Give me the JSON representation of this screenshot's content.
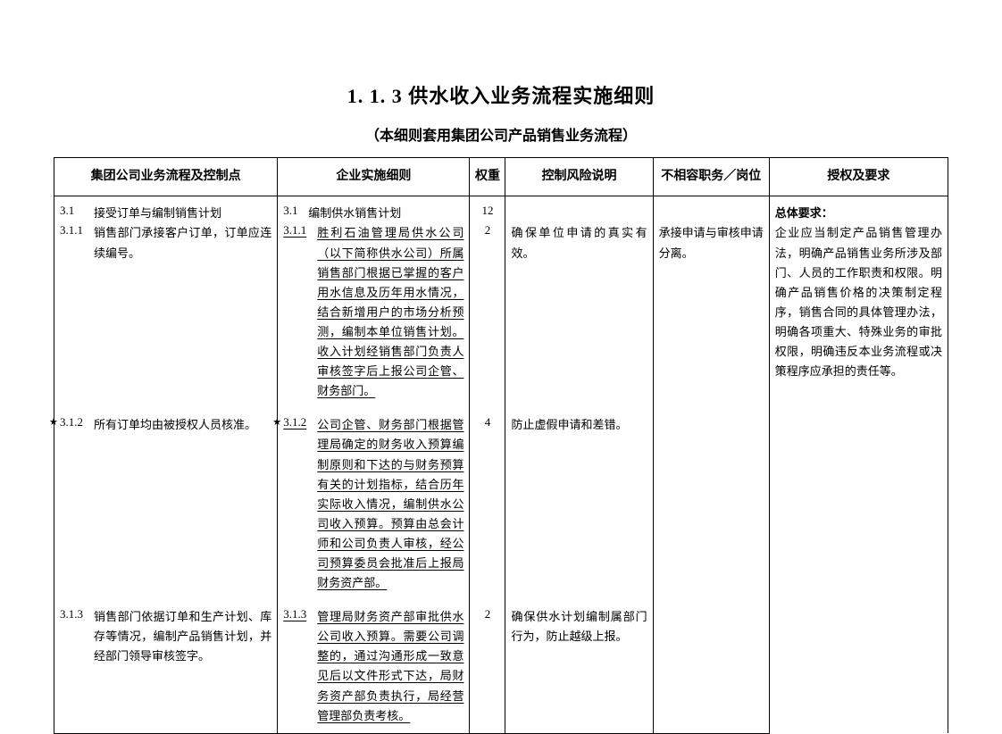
{
  "title": "1. 1. 3 供水收入业务流程实施细则",
  "subtitle": "（本细则套用集团公司产品销售业务流程）",
  "headers": {
    "process": "集团公司业务流程及控制点",
    "impl": "企业实施细则",
    "weight": "权重",
    "risk": "控制风险说明",
    "post": "不相容职务／岗位",
    "auth": "授权及要求"
  },
  "section": {
    "process_num": "3.1",
    "process_txt": "接受订单与编制销售计划",
    "impl_num": "3.1",
    "impl_txt": "编制供水销售计划",
    "weight": "12"
  },
  "rows": [
    {
      "p_num": "3.1.1",
      "p_star": false,
      "p_txt": "销售部门承接客户订单，订单应连续编号。",
      "i_num": "3.1.1",
      "i_star": false,
      "i_txt": "胜利石油管理局供水公司（以下简称供水公司）所属销售部门根据已掌握的客户用水信息及历年用水情况，结合新增用户的市场分析预测，编制本单位销售计划。收入计划经销售部门负责人审核签字后上报公司企管、财务部门。",
      "weight": "2",
      "risk": "确保单位申请的真实有效。",
      "post": "承接申请与审核申请分离。"
    },
    {
      "p_num": "3.1.2",
      "p_star": true,
      "p_txt": "所有订单均由被授权人员核准。",
      "i_num": "3.1.2",
      "i_star": true,
      "i_txt": "公司企管、财务部门根据管理局确定的财务收入预算编制原则和下达的与财务预算有关的计划指标，结合历年实际收入情况，编制供水公司收入预算。预算由总会计师和公司负责人审核，经公司预算委员会批准后上报局财务资产部。",
      "weight": "4",
      "risk": "防止虚假申请和差错。",
      "post": ""
    },
    {
      "p_num": "3.1.3",
      "p_star": false,
      "p_txt": "销售部门依据订单和生产计划、库存等情况，编制产品销售计划，并经部门领导审核签字。",
      "i_num": "3.1.3",
      "i_star": false,
      "i_txt": "管理局财务资产部审批供水公司收入预算。需要公司调整的，通过沟通形成一致意见后以文件形式下达，局财务资产部负责执行，局经营管理部负责考核。",
      "weight": "2",
      "risk": "确保供水计划编制属部门行为，防止越级上报。",
      "post": ""
    }
  ],
  "auth": {
    "head": "总体要求：",
    "body": "企业应当制定产品销售管理办法，明确产品销售业务所涉及部门、人员的工作职责和权限。明确产品销售价格的决策制定程序，销售合同的具体管理办法，明确各项重大、特殊业务的审批权限，明确违反本业务流程或决策程序应承担的责任等。"
  }
}
